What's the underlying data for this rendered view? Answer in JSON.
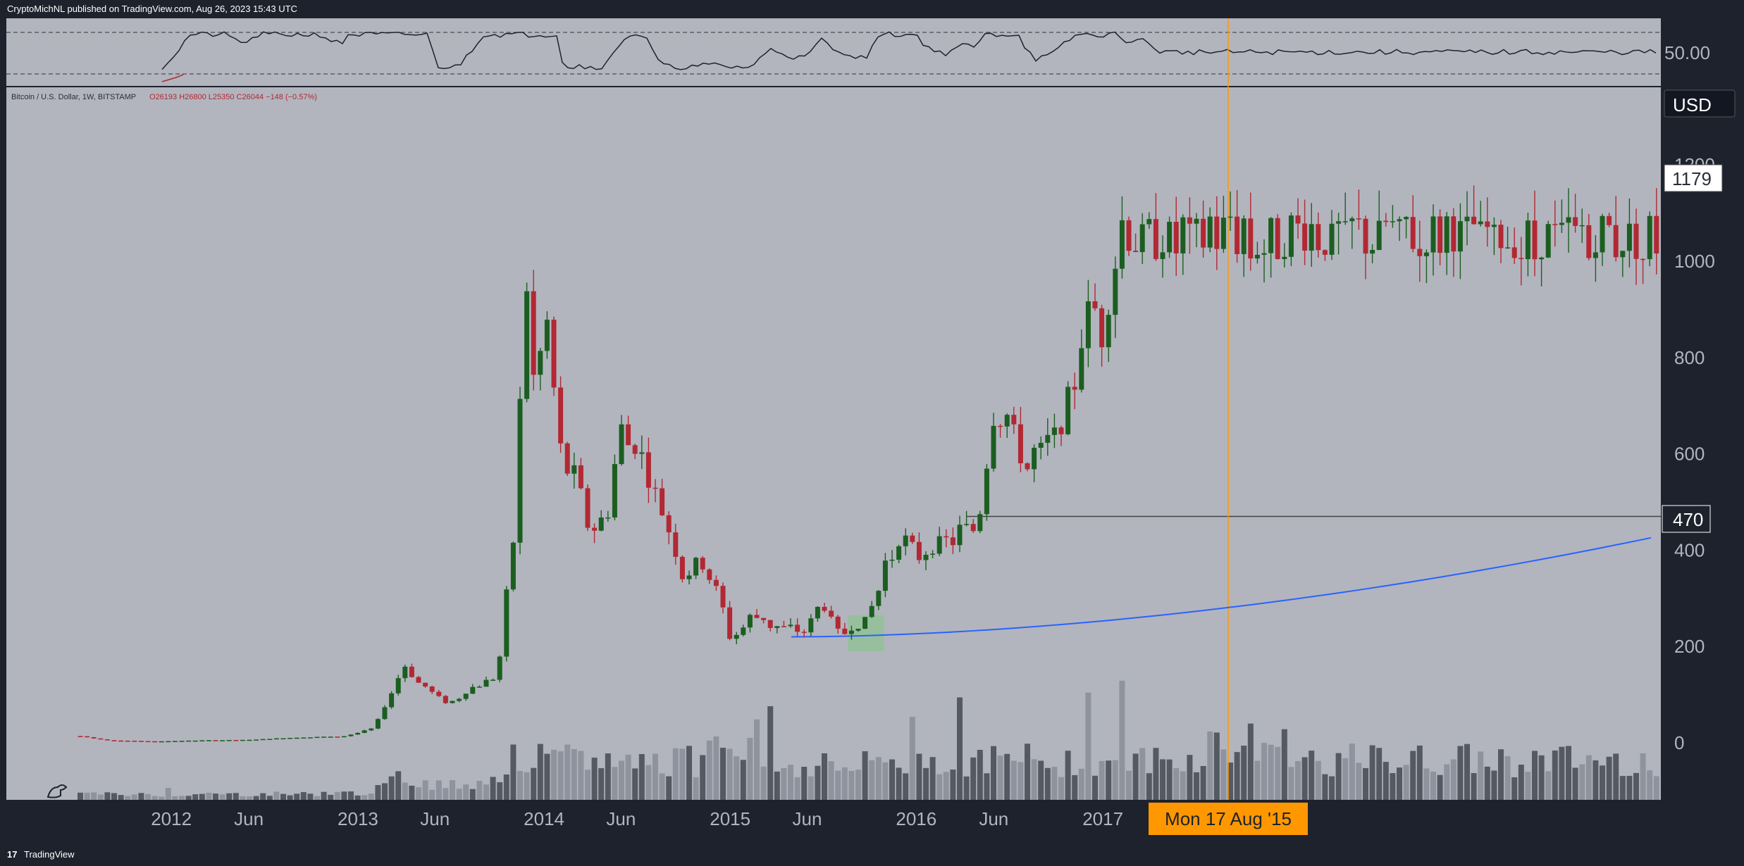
{
  "header": {
    "publisher": "CryptoMichNL published on TradingView.com, Aug 26, 2023 15:43 UTC"
  },
  "footer": {
    "logo_icon": "tradingview-logo-icon",
    "brand": "TradingView"
  },
  "legend": {
    "symbol": "Bitcoin / U.S. Dollar, 1W, BITSTAMP",
    "ohlc": "O26193  H26800  L25350  C26044  −148 (−0.57%)"
  },
  "chart_data": {
    "type": "candlestick",
    "symbol": "Bitcoin / U.S. Dollar, 1W, BITSTAMP",
    "currency": "USD",
    "ylim": [
      0,
      1300
    ],
    "y_ticks": [
      "0",
      "200",
      "400",
      "600",
      "800",
      "1000",
      "1200"
    ],
    "x_ticks": [
      "2012",
      "Jun",
      "2013",
      "Jun",
      "2014",
      "Jun",
      "2015",
      "Jun",
      "2016",
      "Jun",
      "2017"
    ],
    "price_labels": {
      "last": "1179",
      "horizontal_level": "470"
    },
    "crosshair_label": "Mon 17 Aug '15",
    "horizontal_level": 470,
    "rsi_panel": {
      "label": "50.00",
      "upper_band": 70,
      "lower_band": 30
    },
    "colors": {
      "background": "#b2b5be",
      "up": "#1b5e20",
      "down": "#b22833",
      "ma": "#2962ff",
      "volume_dark": "#555962",
      "volume_light": "#8f939d",
      "highlight": "#81c784",
      "crosshair": "#ff9800",
      "label_dark": "#1e222d"
    },
    "price_path": [
      [
        "2011-07",
        14
      ],
      [
        "2011-09",
        5
      ],
      [
        "2011-12",
        3
      ],
      [
        "2012-03",
        5
      ],
      [
        "2012-06",
        6
      ],
      [
        "2012-09",
        11
      ],
      [
        "2012-12",
        13
      ],
      [
        "2013-02",
        30
      ],
      [
        "2013-03",
        90
      ],
      [
        "2013-04",
        165
      ],
      [
        "2013-05",
        120
      ],
      [
        "2013-07",
        80
      ],
      [
        "2013-08",
        105
      ],
      [
        "2013-10",
        140
      ],
      [
        "2013-11",
        420
      ],
      [
        "2013-11-30",
        1000
      ],
      [
        "2013-12-15",
        650
      ],
      [
        "2014-01",
        900
      ],
      [
        "2014-02",
        600
      ],
      [
        "2014-03",
        560
      ],
      [
        "2014-04",
        450
      ],
      [
        "2014-05",
        450
      ],
      [
        "2014-06",
        640
      ],
      [
        "2014-07",
        620
      ],
      [
        "2014-08",
        520
      ],
      [
        "2014-09",
        460
      ],
      [
        "2014-10",
        340
      ],
      [
        "2014-11",
        380
      ],
      [
        "2014-12",
        330
      ],
      [
        "2015-01",
        220
      ],
      [
        "2015-02",
        250
      ],
      [
        "2015-03",
        270
      ],
      [
        "2015-04",
        235
      ],
      [
        "2015-05",
        235
      ],
      [
        "2015-06",
        240
      ],
      [
        "2015-07",
        290
      ],
      [
        "2015-08",
        230
      ],
      [
        "2015-09",
        240
      ],
      [
        "2015-10",
        260
      ],
      [
        "2015-11",
        370
      ],
      [
        "2015-12",
        430
      ],
      [
        "2016-01",
        390
      ],
      [
        "2016-02",
        410
      ],
      [
        "2016-03",
        415
      ],
      [
        "2016-04",
        440
      ],
      [
        "2016-05",
        460
      ],
      [
        "2016-06",
        680
      ],
      [
        "2016-07",
        660
      ],
      [
        "2016-08",
        580
      ],
      [
        "2016-09",
        600
      ],
      [
        "2016-10",
        640
      ],
      [
        "2016-11",
        730
      ],
      [
        "2016-12",
        900
      ],
      [
        "2017-01",
        850
      ],
      [
        "2017-02",
        1050
      ]
    ]
  }
}
